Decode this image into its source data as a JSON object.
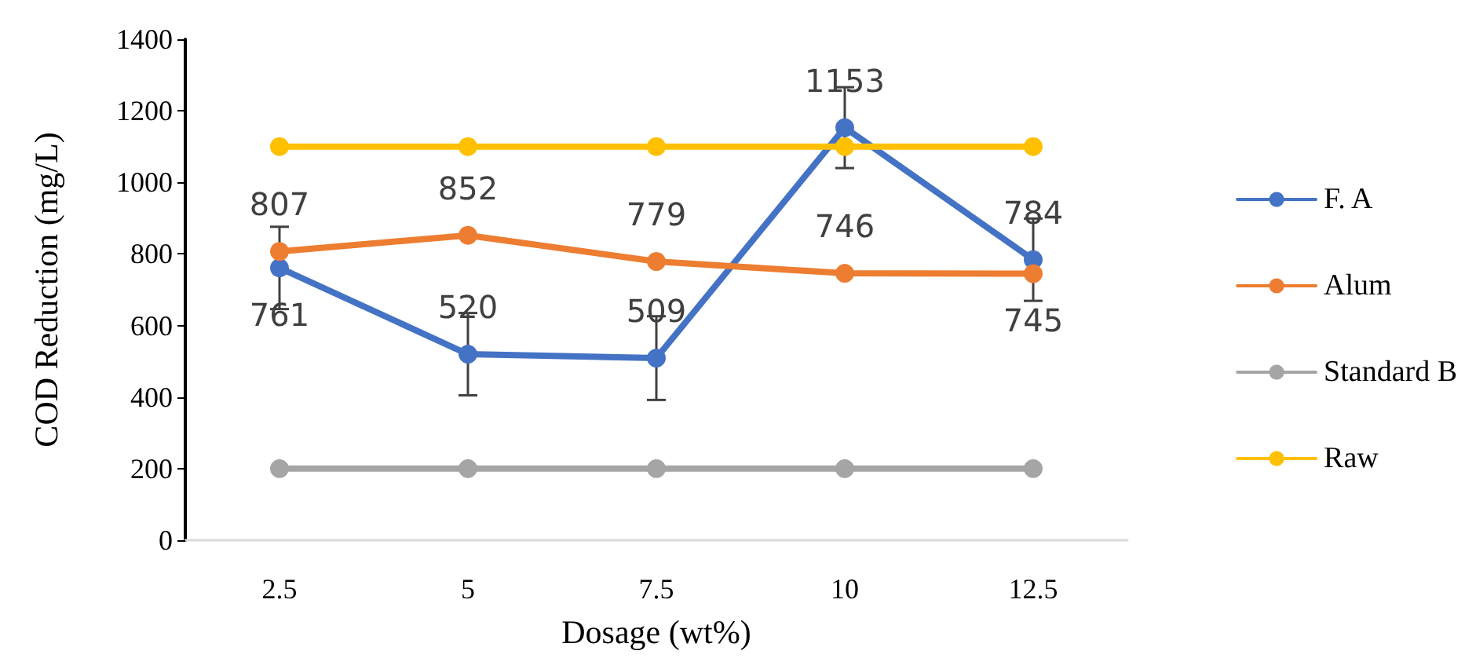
{
  "chart_data": {
    "type": "line",
    "xlabel": "Dosage (wt%)",
    "ylabel": "COD Reduction (mg/L)",
    "categories": [
      "2.5",
      "5",
      "7.5",
      "10",
      "12.5"
    ],
    "series": [
      {
        "name": "F. A",
        "color": "#4472c4",
        "values": [
          761,
          520,
          509,
          1153,
          784
        ],
        "value_labels": [
          "761",
          "520",
          "509",
          "1153",
          "784"
        ],
        "errors": [
          115,
          115,
          117,
          113,
          115
        ]
      },
      {
        "name": "Alum",
        "color": "#ed7d31",
        "values": [
          807,
          852,
          779,
          746,
          745
        ],
        "value_labels": [
          "807",
          "852",
          "779",
          "746",
          "745"
        ]
      },
      {
        "name": "Standard B",
        "color": "#a5a5a5",
        "values": [
          200,
          200,
          200,
          200,
          200
        ]
      },
      {
        "name": "Raw",
        "color": "#ffc000",
        "values": [
          1100,
          1100,
          1100,
          1100,
          1100
        ]
      }
    ],
    "ylim": [
      0,
      1400
    ],
    "yticks": [
      0,
      200,
      400,
      600,
      800,
      1000,
      1200,
      1400
    ],
    "grid": false,
    "legend": "right",
    "marker": "circle",
    "line_style": "solid"
  }
}
